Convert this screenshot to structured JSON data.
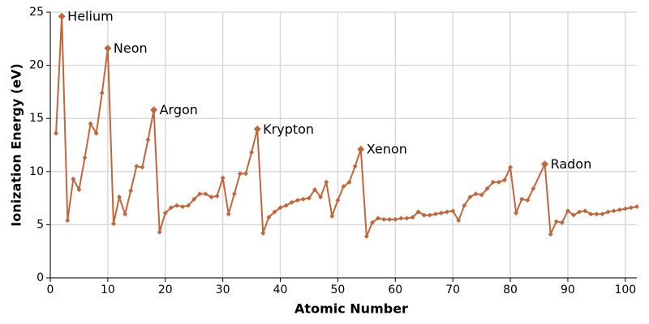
{
  "chart_data": {
    "type": "line",
    "xlabel": "Atomic Number",
    "ylabel": "Ionization Energy (eV)",
    "color": "#c0663a",
    "grid": true,
    "xlim": [
      0,
      102
    ],
    "xticks": [
      0,
      10,
      20,
      30,
      40,
      50,
      60,
      70,
      80,
      90,
      100
    ],
    "ylim": [
      0,
      25
    ],
    "yticks": [
      0,
      5,
      10,
      15,
      20,
      25
    ],
    "x": [
      1,
      2,
      3,
      4,
      5,
      6,
      7,
      8,
      9,
      10,
      11,
      12,
      13,
      14,
      15,
      16,
      17,
      18,
      19,
      20,
      21,
      22,
      23,
      24,
      25,
      26,
      27,
      28,
      29,
      30,
      31,
      32,
      33,
      34,
      35,
      36,
      37,
      38,
      39,
      40,
      41,
      42,
      43,
      44,
      45,
      46,
      47,
      48,
      49,
      50,
      51,
      52,
      53,
      54,
      55,
      56,
      57,
      58,
      59,
      60,
      61,
      62,
      63,
      64,
      65,
      66,
      67,
      68,
      69,
      70,
      71,
      72,
      73,
      74,
      75,
      76,
      77,
      78,
      79,
      80,
      81,
      82,
      83,
      84,
      86,
      87,
      88,
      89,
      90,
      91,
      92,
      93,
      94,
      95,
      96,
      97,
      98,
      99,
      100,
      101,
      102
    ],
    "values": [
      13.6,
      24.6,
      5.4,
      9.3,
      8.3,
      11.3,
      14.5,
      13.6,
      17.4,
      21.6,
      5.1,
      7.6,
      6.0,
      8.2,
      10.5,
      10.4,
      13.0,
      15.8,
      4.3,
      6.1,
      6.6,
      6.8,
      6.7,
      6.8,
      7.4,
      7.9,
      7.9,
      7.6,
      7.7,
      9.4,
      6.0,
      7.9,
      9.8,
      9.8,
      11.8,
      14.0,
      4.2,
      5.7,
      6.2,
      6.6,
      6.8,
      7.1,
      7.3,
      7.4,
      7.5,
      8.3,
      7.6,
      9.0,
      5.8,
      7.3,
      8.6,
      9.0,
      10.5,
      12.1,
      3.9,
      5.2,
      5.6,
      5.5,
      5.5,
      5.5,
      5.6,
      5.6,
      5.7,
      6.2,
      5.9,
      5.9,
      6.0,
      6.1,
      6.2,
      6.3,
      5.4,
      6.8,
      7.6,
      7.9,
      7.8,
      8.4,
      9.0,
      9.0,
      9.2,
      10.4,
      6.1,
      7.4,
      7.3,
      8.4,
      10.7,
      4.1,
      5.3,
      5.2,
      6.3,
      5.9,
      6.2,
      6.3,
      6.0,
      6.0,
      6.0,
      6.2,
      6.3,
      6.4,
      6.5,
      6.6,
      6.7
    ],
    "point_labels": [
      null,
      "Helium",
      null,
      null,
      null,
      null,
      null,
      null,
      null,
      "Neon",
      null,
      null,
      null,
      null,
      null,
      null,
      null,
      "Argon",
      null,
      null,
      null,
      null,
      null,
      null,
      null,
      null,
      null,
      null,
      null,
      null,
      null,
      null,
      null,
      null,
      null,
      "Krypton",
      null,
      null,
      null,
      null,
      null,
      null,
      null,
      null,
      null,
      null,
      null,
      null,
      null,
      null,
      null,
      null,
      null,
      "Xenon",
      null,
      null,
      null,
      null,
      null,
      null,
      null,
      null,
      null,
      null,
      null,
      null,
      null,
      null,
      null,
      null,
      null,
      null,
      null,
      null,
      null,
      null,
      null,
      null,
      null,
      null,
      null,
      null,
      null,
      null,
      "Radon",
      null,
      null,
      null,
      null,
      null,
      null,
      null,
      null,
      null,
      null,
      null,
      null,
      null,
      null,
      null,
      null
    ]
  }
}
